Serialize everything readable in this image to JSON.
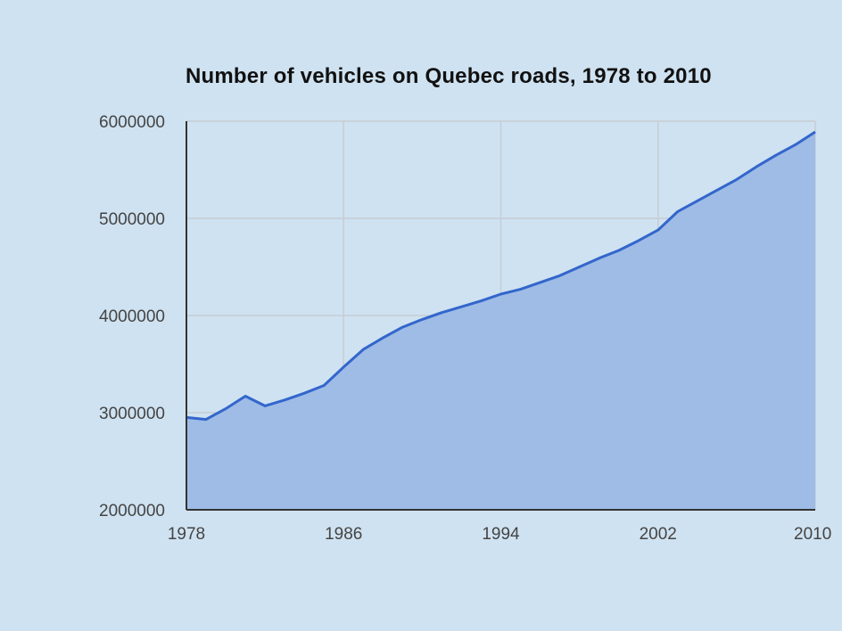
{
  "chart_data": {
    "type": "area",
    "title": "Number of vehicles on Quebec roads, 1978 to 2010",
    "xlabel": "",
    "ylabel": "",
    "xlim": [
      1978,
      2010
    ],
    "ylim": [
      2000000,
      6000000
    ],
    "x_ticks": [
      "1978",
      "1986",
      "1994",
      "2002",
      "2010"
    ],
    "y_ticks": [
      "6000000",
      "5000000",
      "4000000",
      "3000000",
      "2000000"
    ],
    "grid": true,
    "legend": "none",
    "colors": {
      "line": "#3366cc",
      "fill": "#9ebce6",
      "grid": "#c6cdd4",
      "axis": "#333333"
    },
    "series": [
      {
        "x": [
          1978,
          1979,
          1980,
          1981,
          1982,
          1983,
          1984,
          1985,
          1986,
          1987,
          1988,
          1989,
          1990,
          1991,
          1992,
          1993,
          1994,
          1995,
          1996,
          1997,
          1998,
          1999,
          2000,
          2001,
          2002,
          2003,
          2004,
          2005,
          2006,
          2007,
          2008,
          2009,
          2010
        ],
        "values": [
          2950000,
          2930000,
          3040000,
          3170000,
          3070000,
          3130000,
          3200000,
          3280000,
          3470000,
          3650000,
          3770000,
          3880000,
          3960000,
          4030000,
          4090000,
          4150000,
          4220000,
          4270000,
          4340000,
          4410000,
          4500000,
          4590000,
          4670000,
          4770000,
          4880000,
          5070000,
          5180000,
          5290000,
          5400000,
          5530000,
          5650000,
          5760000,
          5890000
        ]
      }
    ]
  }
}
